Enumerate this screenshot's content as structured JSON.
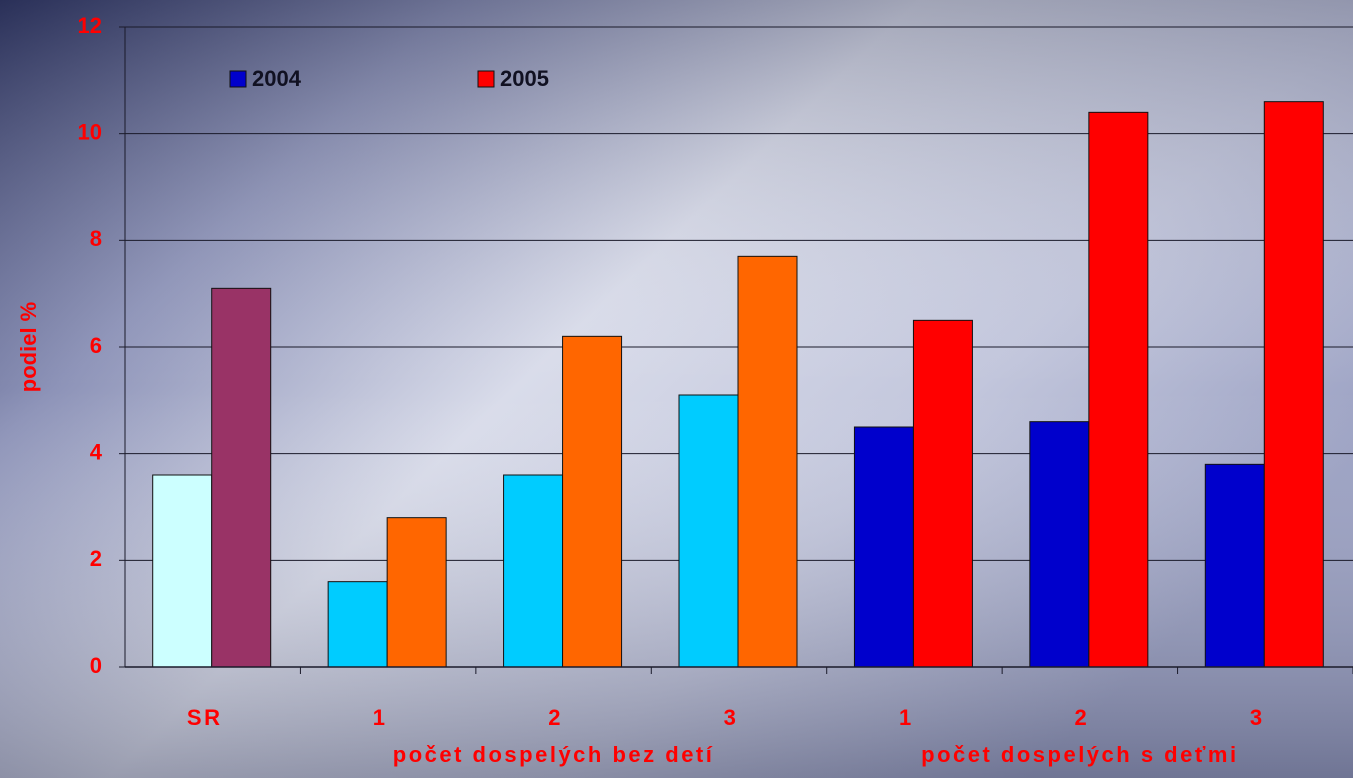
{
  "chart_data": {
    "type": "bar",
    "ylabel": "podiel %",
    "groups": [
      {
        "name": null,
        "categories": [
          "SR"
        ]
      },
      {
        "name": "počet dospelých bez detí",
        "categories": [
          "1",
          "2",
          "3"
        ]
      },
      {
        "name": "počet dospelých s deťmi",
        "categories": [
          "1",
          "2",
          "3"
        ]
      }
    ],
    "series": [
      {
        "name": "2004",
        "color": "#0000cc",
        "colors": [
          "#ccffff",
          "#00ccff",
          "#00ccff",
          "#00ccff",
          "#0000cc",
          "#0000cc",
          "#0000cc"
        ],
        "values": [
          3.6,
          1.6,
          3.6,
          5.1,
          4.5,
          4.6,
          3.8
        ]
      },
      {
        "name": "2005",
        "color": "#ff0000",
        "colors": [
          "#993366",
          "#ff6600",
          "#ff6600",
          "#ff6600",
          "#ff0000",
          "#ff0000",
          "#ff0000"
        ],
        "values": [
          7.1,
          2.8,
          6.2,
          7.7,
          6.5,
          10.4,
          10.6
        ]
      }
    ],
    "ylim": [
      0,
      12
    ],
    "yticks": [
      0,
      2,
      4,
      6,
      8,
      10,
      12
    ],
    "grid": true
  }
}
